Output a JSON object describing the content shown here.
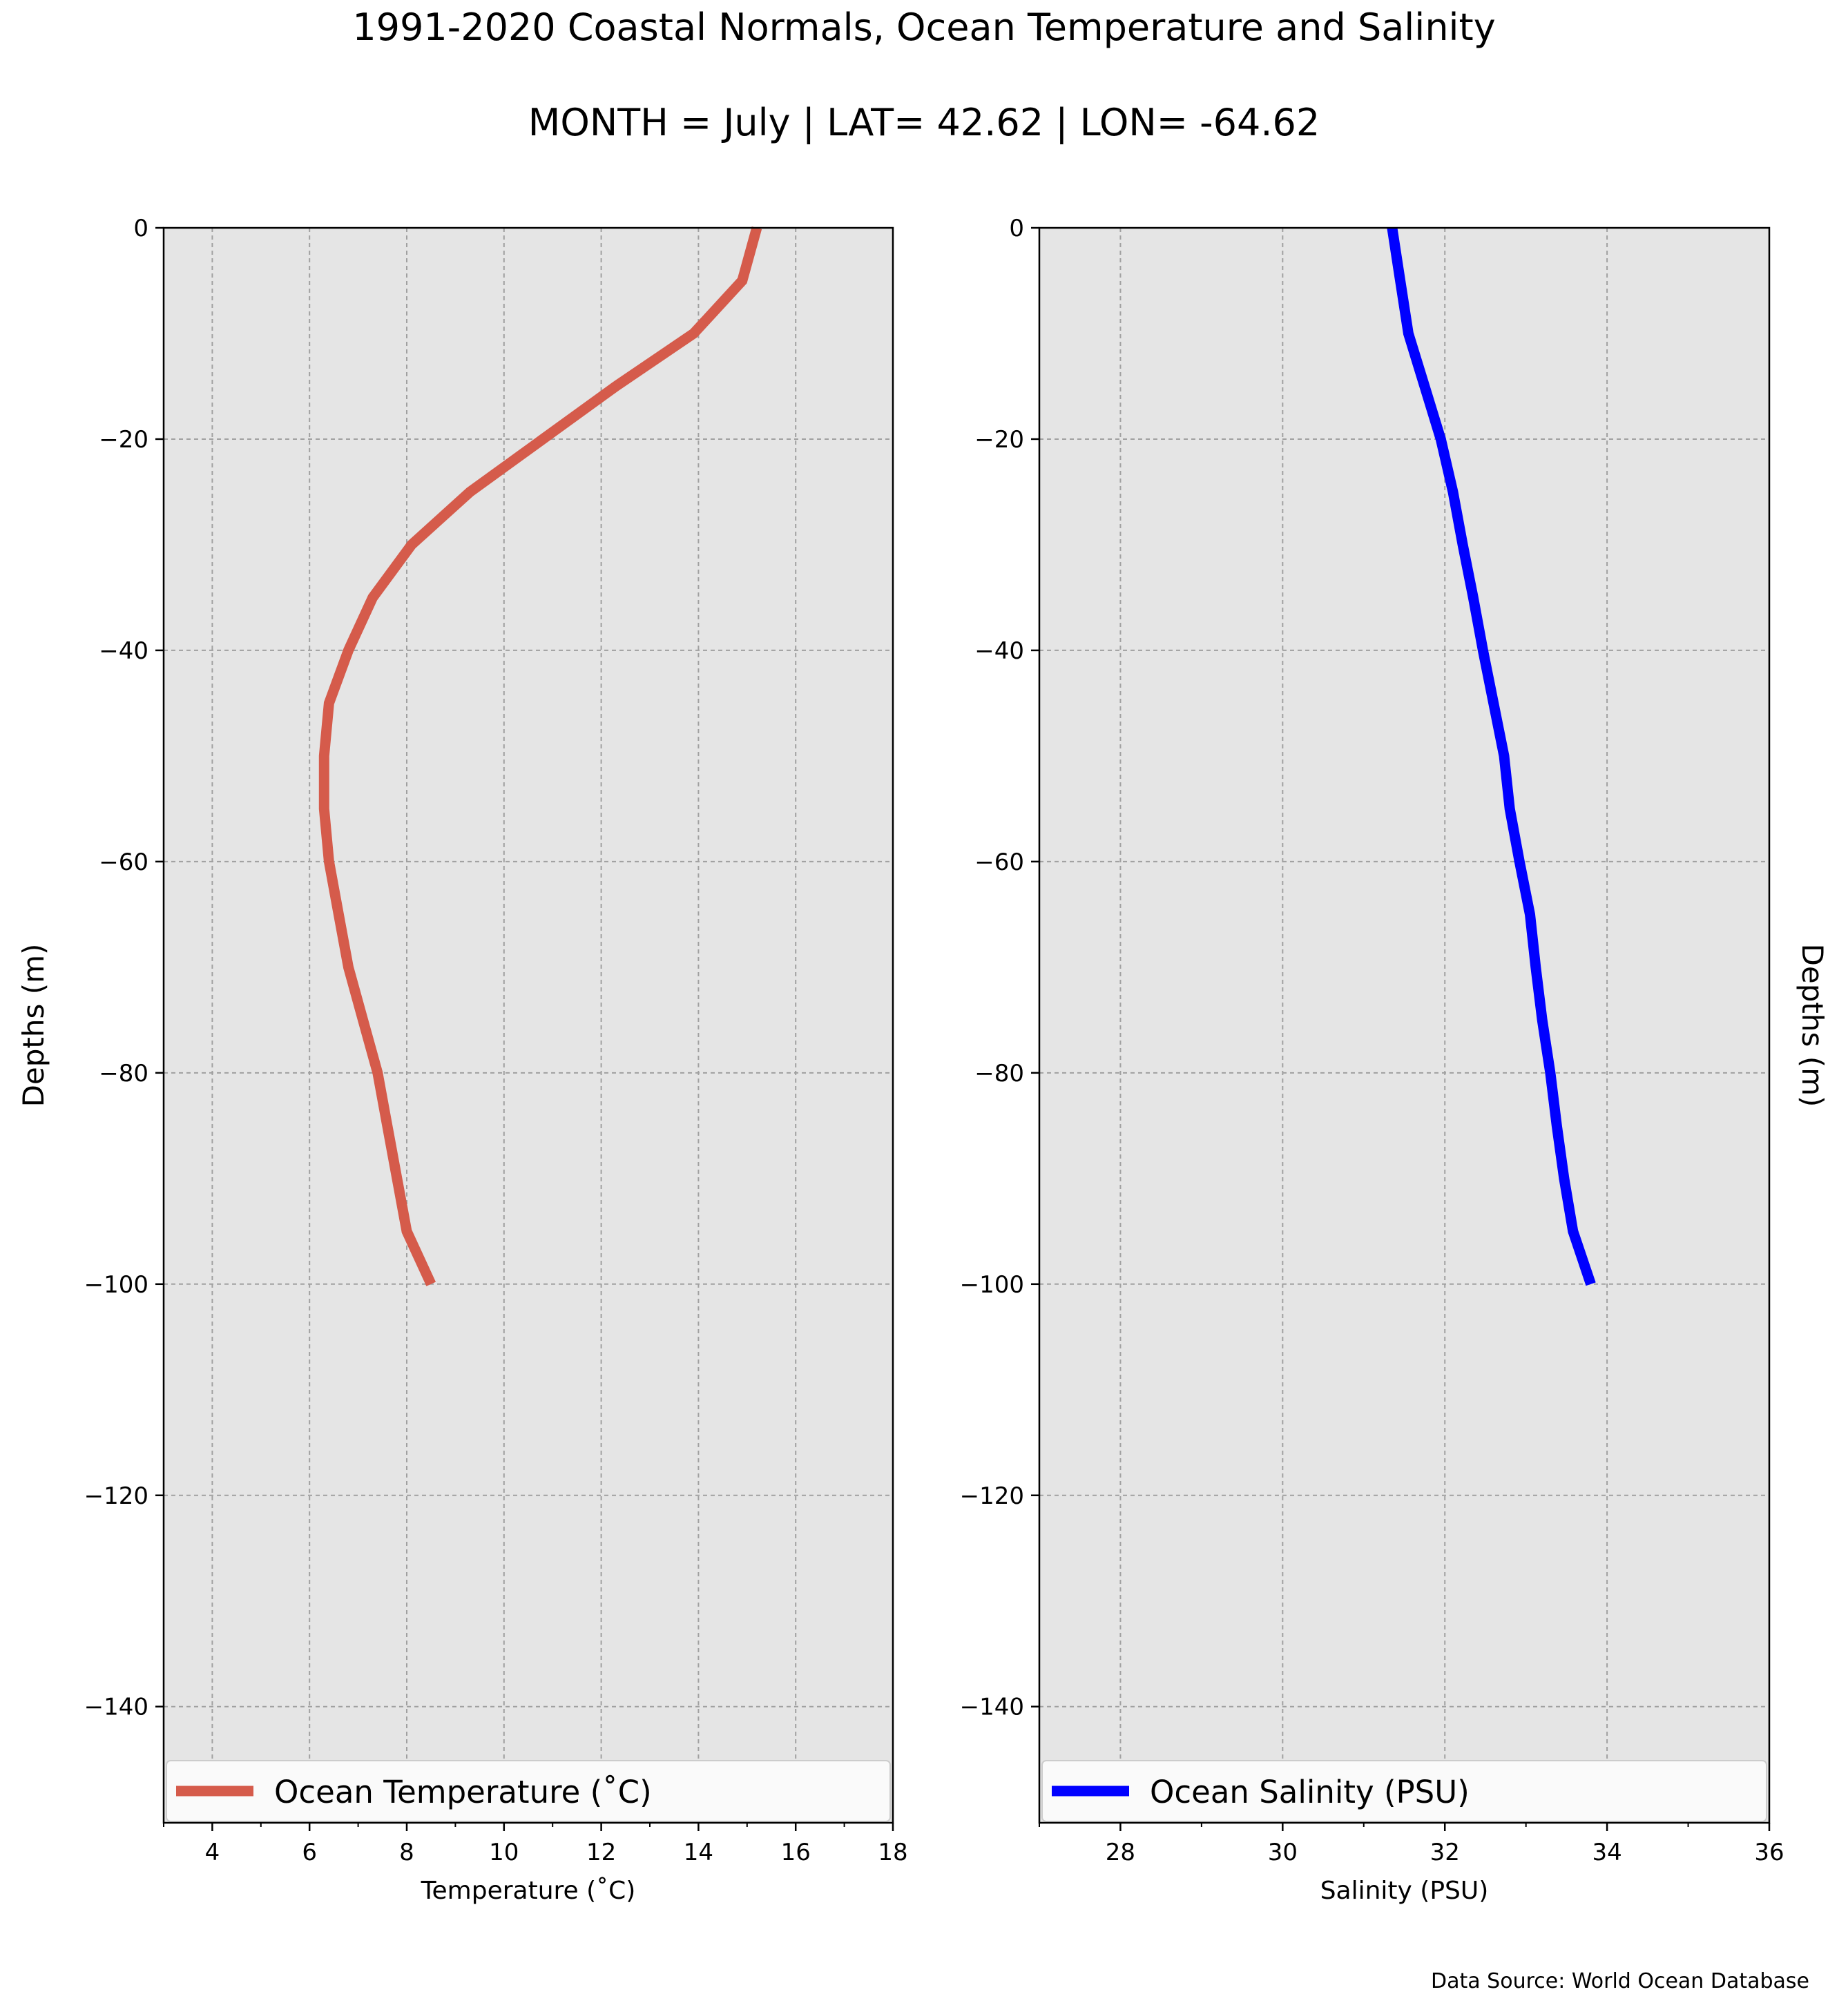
{
  "title": "1991-2020 Coastal Normals, Ocean Temperature and Salinity",
  "subtitle": "MONTH = July | LAT= 42.62 | LON= -64.62",
  "source_note": "Data Source: World Ocean Database",
  "colors": {
    "plot_bg": "#e5e5e5",
    "grid": "#a0a0a0",
    "temperature": "#d55b4b",
    "salinity": "#0000ff",
    "legend_bg": "#fafafa"
  },
  "chart_data": [
    {
      "type": "line",
      "title": "",
      "xlabel": "Temperature ($^\\circ$C)",
      "xlabel_display": "Temperature (˚C)",
      "ylabel": "Depths (m)",
      "xlim": [
        3,
        18
      ],
      "ylim": [
        -151,
        0
      ],
      "x_ticks": [
        4,
        6,
        8,
        10,
        12,
        14,
        16,
        18
      ],
      "y_ticks": [
        0,
        -20,
        -40,
        -60,
        -80,
        -100,
        -120,
        -140
      ],
      "y_tick_labels": [
        "0",
        "−20",
        "−40",
        "−60",
        "−80",
        "−100",
        "−120",
        "−140"
      ],
      "grid": true,
      "legend_position": "bottom",
      "series": [
        {
          "name": "Ocean Temperature (˚C)",
          "color": "#d55b4b",
          "x": [
            15.2,
            14.9,
            13.9,
            12.3,
            10.8,
            9.3,
            8.1,
            7.3,
            6.8,
            6.4,
            6.3,
            6.3,
            6.4,
            6.6,
            6.8,
            7.1,
            7.4,
            7.6,
            7.8,
            8.0,
            8.5
          ],
          "y": [
            0,
            -5,
            -10,
            -15,
            -20,
            -25,
            -30,
            -35,
            -40,
            -45,
            -50,
            -55,
            -60,
            -65,
            -70,
            -75,
            -80,
            -85,
            -90,
            -95,
            -100
          ]
        }
      ]
    },
    {
      "type": "line",
      "title": "",
      "xlabel": "Salinity (PSU)",
      "ylabel": "Depths (m)",
      "xlim": [
        27,
        36
      ],
      "ylim": [
        -151,
        0
      ],
      "x_ticks": [
        28,
        30,
        32,
        34,
        36
      ],
      "y_ticks": [
        0,
        -20,
        -40,
        -60,
        -80,
        -100,
        -120,
        -140
      ],
      "y_tick_labels": [
        "0",
        "−20",
        "−40",
        "−60",
        "−80",
        "−100",
        "−120",
        "−140"
      ],
      "grid": true,
      "legend_position": "bottom",
      "series": [
        {
          "name": "Ocean Salinity (PSU)",
          "color": "#0000ff",
          "x": [
            31.35,
            31.45,
            31.55,
            31.75,
            31.95,
            32.1,
            32.22,
            32.35,
            32.47,
            32.6,
            32.73,
            32.8,
            32.92,
            33.05,
            33.12,
            33.2,
            33.3,
            33.38,
            33.47,
            33.58,
            33.8
          ],
          "y": [
            0,
            -5,
            -10,
            -15,
            -20,
            -25,
            -30,
            -35,
            -40,
            -45,
            -50,
            -55,
            -60,
            -65,
            -70,
            -75,
            -80,
            -85,
            -90,
            -95,
            -100
          ]
        }
      ]
    }
  ]
}
